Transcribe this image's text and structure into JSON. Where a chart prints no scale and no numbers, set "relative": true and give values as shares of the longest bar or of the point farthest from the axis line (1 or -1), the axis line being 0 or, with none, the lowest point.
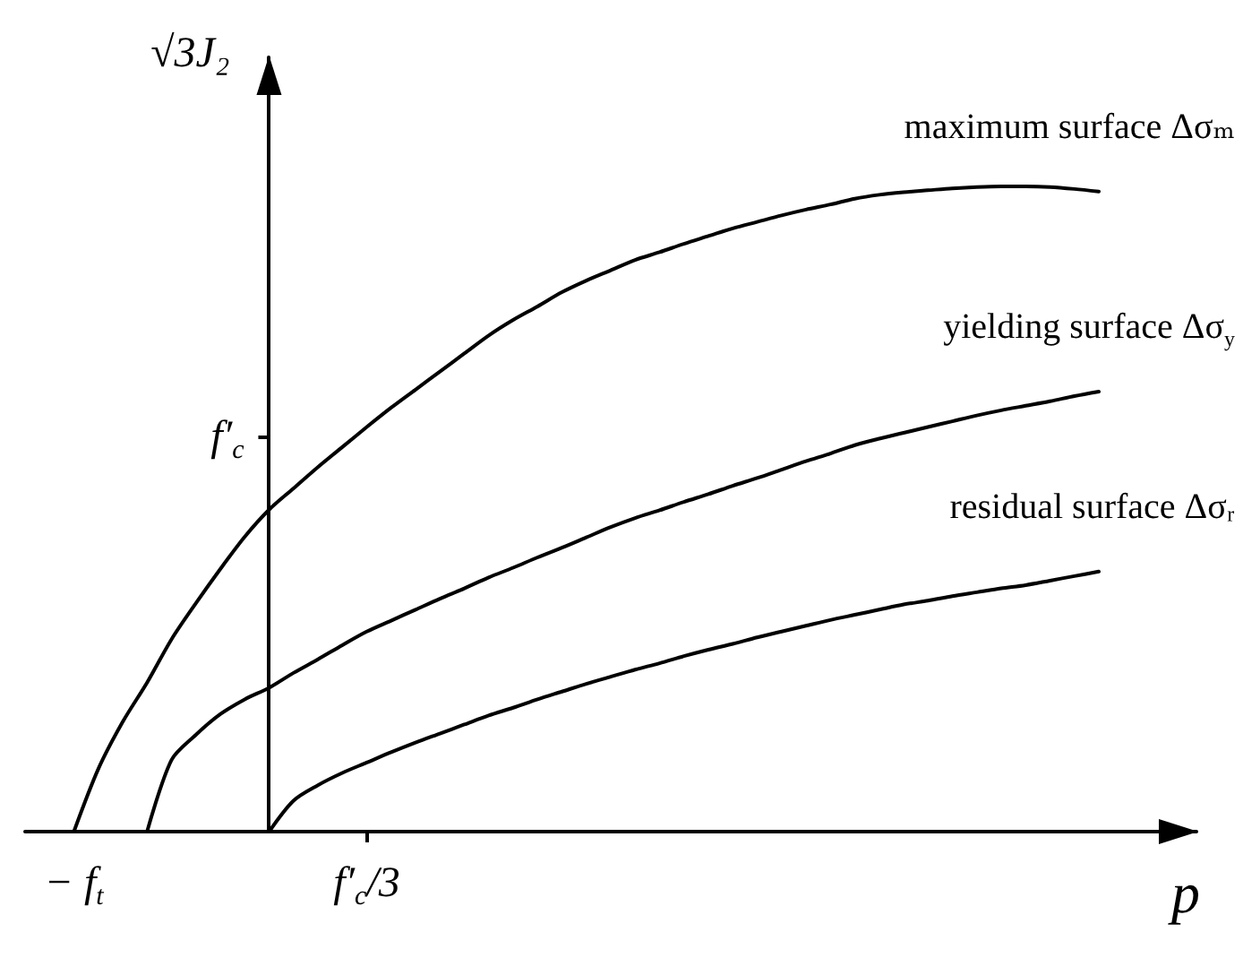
{
  "chart_data": {
    "type": "line",
    "xlabel": "p",
    "ylabel": "√3J₂",
    "relative": true,
    "categories": [
      null,
      null,
      "− f$_{t}$",
      null,
      null,
      null,
      null,
      null,
      null,
      null,
      null,
      null,
      null,
      null,
      "f′$_{c}$/3",
      null,
      null,
      null,
      null,
      null,
      null,
      null,
      null,
      null,
      null,
      null,
      null,
      null,
      null,
      null,
      null,
      null,
      null,
      null,
      null,
      null,
      null,
      null,
      null,
      null,
      null,
      null,
      null,
      null,
      null,
      null,
      null,
      null,
      null
    ],
    "series": [
      {
        "name": "maximum surface Δσₘ",
        "color": "#000000",
        "values": [
          null,
          null,
          0,
          0.097,
          0.17,
          0.231,
          0.298,
          0.354,
          0.407,
          0.457,
          0.499,
          0.532,
          0.565,
          0.596,
          0.627,
          0.657,
          0.685,
          0.713,
          0.741,
          0.769,
          0.793,
          0.814,
          0.836,
          0.854,
          0.87,
          0.886,
          0.898,
          0.911,
          0.923,
          0.935,
          0.945,
          0.955,
          0.964,
          0.972,
          0.981,
          0.987,
          0.991,
          0.994,
          0.997,
          0.999,
          1,
          1,
          0.999,
          0.996,
          0.992,
          null,
          null,
          null,
          null
        ]
      },
      {
        "name": "yielding surface Δσ$_{y}$",
        "color": "#000000",
        "values": [
          null,
          null,
          null,
          null,
          null,
          0,
          0.111,
          0.15,
          0.182,
          0.205,
          0.223,
          0.246,
          0.267,
          0.289,
          0.31,
          0.327,
          0.344,
          0.361,
          0.377,
          0.394,
          0.409,
          0.425,
          0.44,
          0.456,
          0.472,
          0.486,
          0.498,
          0.511,
          0.523,
          0.536,
          0.548,
          0.561,
          0.574,
          0.586,
          0.599,
          0.609,
          0.618,
          0.627,
          0.636,
          0.645,
          0.653,
          0.66,
          0.667,
          0.675,
          0.682,
          null,
          null,
          null,
          null
        ]
      },
      {
        "name": "residual surface Δσᵣ",
        "color": "#000000",
        "values": [
          null,
          null,
          null,
          null,
          null,
          null,
          null,
          null,
          null,
          null,
          0,
          0.048,
          0.072,
          0.091,
          0.107,
          0.123,
          0.138,
          0.152,
          0.166,
          0.18,
          0.192,
          0.205,
          0.217,
          0.229,
          0.24,
          0.251,
          0.261,
          0.272,
          0.282,
          0.291,
          0.301,
          0.31,
          0.319,
          0.328,
          0.336,
          0.344,
          0.352,
          0.358,
          0.365,
          0.371,
          0.377,
          0.382,
          0.389,
          0.396,
          0.403,
          null,
          null,
          null,
          null
        ]
      }
    ],
    "annotations": [
      "f′$_{c}$"
    ],
    "grid": false,
    "legend": false
  }
}
